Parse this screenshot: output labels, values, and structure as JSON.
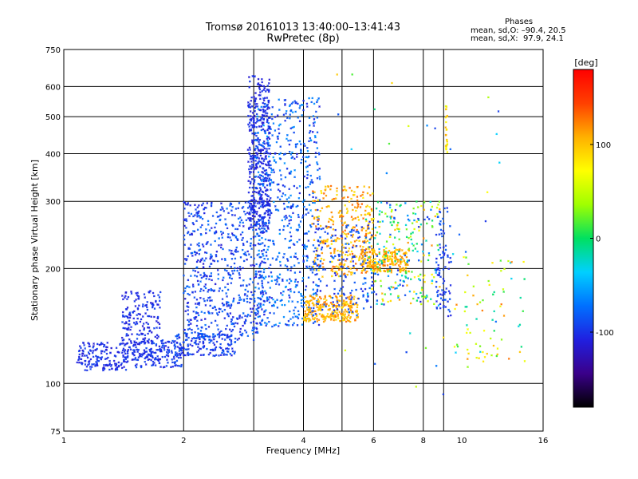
{
  "header": {
    "title_line1": "Tromsø 20161013 13:40:00–13:41:43",
    "title_line2": "RwPretec (8p)",
    "phases_title": "Phases",
    "phases_o": "mean, sd,O: –90.4, 20.5",
    "phases_x": "mean, sd,X:  97.9, 24.1"
  },
  "chart_data": {
    "type": "scatter",
    "title": "Tromsø 20161013 13:40:00–13:41:43",
    "subtitle": "RwPretec (8p)",
    "xlabel": "Frequency [MHz]",
    "ylabel": "Stationary phase Virtual Height [km]",
    "xscale": "log",
    "yscale": "log",
    "xlim": [
      1,
      16
    ],
    "ylim": [
      75,
      750
    ],
    "x_ticks": [
      1,
      2,
      4,
      6,
      8,
      10,
      16
    ],
    "y_ticks": [
      75,
      100,
      200,
      300,
      400,
      500,
      600,
      750
    ],
    "x_gridlines": [
      2,
      3,
      4,
      5,
      6,
      8,
      9
    ],
    "y_gridlines": [
      100,
      200,
      300,
      400,
      500,
      600
    ],
    "grid": true,
    "colorbar": {
      "label": "[deg]",
      "ticks": [
        100,
        0,
        -100
      ],
      "range": [
        -180,
        180
      ],
      "colors": [
        "#000000",
        "#3a008a",
        "#2020e0",
        "#0070ff",
        "#00d0ff",
        "#00e060",
        "#a0ff00",
        "#ffff00",
        "#ffb000",
        "#ff4000",
        "#ff0000"
      ]
    },
    "clusters": [
      {
        "x": [
          1.08,
          1.45
        ],
        "y": [
          108,
          128
        ],
        "phase": [
          -115,
          -90
        ],
        "n": 160
      },
      {
        "x": [
          1.4,
          1.75
        ],
        "y": [
          115,
          175
        ],
        "phase": [
          -115,
          -90
        ],
        "n": 220
      },
      {
        "x": [
          1.5,
          2.0
        ],
        "y": [
          110,
          130
        ],
        "phase": [
          -110,
          -85
        ],
        "n": 140
      },
      {
        "x": [
          1.9,
          2.7
        ],
        "y": [
          118,
          135
        ],
        "phase": [
          -110,
          -80
        ],
        "n": 160
      },
      {
        "x": [
          2.0,
          3.2
        ],
        "y": [
          130,
          300
        ],
        "phase": [
          -115,
          -70
        ],
        "n": 650
      },
      {
        "x": [
          2.9,
          3.3
        ],
        "y": [
          250,
          640
        ],
        "phase": [
          -115,
          -95
        ],
        "n": 420
      },
      {
        "x": [
          3.0,
          4.4
        ],
        "y": [
          140,
          560
        ],
        "phase": [
          -110,
          -55
        ],
        "n": 650
      },
      {
        "x": [
          4.0,
          5.5
        ],
        "y": [
          145,
          170
        ],
        "phase": [
          85,
          130
        ],
        "n": 260
      },
      {
        "x": [
          4.2,
          6.0
        ],
        "y": [
          190,
          330
        ],
        "phase": [
          80,
          135
        ],
        "n": 300
      },
      {
        "x": [
          4.2,
          6.0
        ],
        "y": [
          150,
          260
        ],
        "phase": [
          -110,
          -70
        ],
        "n": 180
      },
      {
        "x": [
          5.6,
          7.4
        ],
        "y": [
          195,
          225
        ],
        "phase": [
          85,
          130
        ],
        "n": 220
      },
      {
        "x": [
          5.8,
          8.8
        ],
        "y": [
          160,
          300
        ],
        "phase": [
          -110,
          125
        ],
        "n": 260
      },
      {
        "x": [
          8.6,
          9.4
        ],
        "y": [
          150,
          290
        ],
        "phase": [
          -110,
          -80
        ],
        "n": 90
      },
      {
        "x": [
          9.1,
          9.2
        ],
        "y": [
          400,
          540
        ],
        "phase": [
          60,
          120
        ],
        "n": 24
      },
      {
        "x": [
          9.5,
          14.5
        ],
        "y": [
          110,
          210
        ],
        "phase": [
          -40,
          130
        ],
        "n": 70
      },
      {
        "x": [
          4.7,
          13.5
        ],
        "y": [
          90,
          650
        ],
        "phase": [
          -110,
          130
        ],
        "n": 45
      }
    ]
  }
}
